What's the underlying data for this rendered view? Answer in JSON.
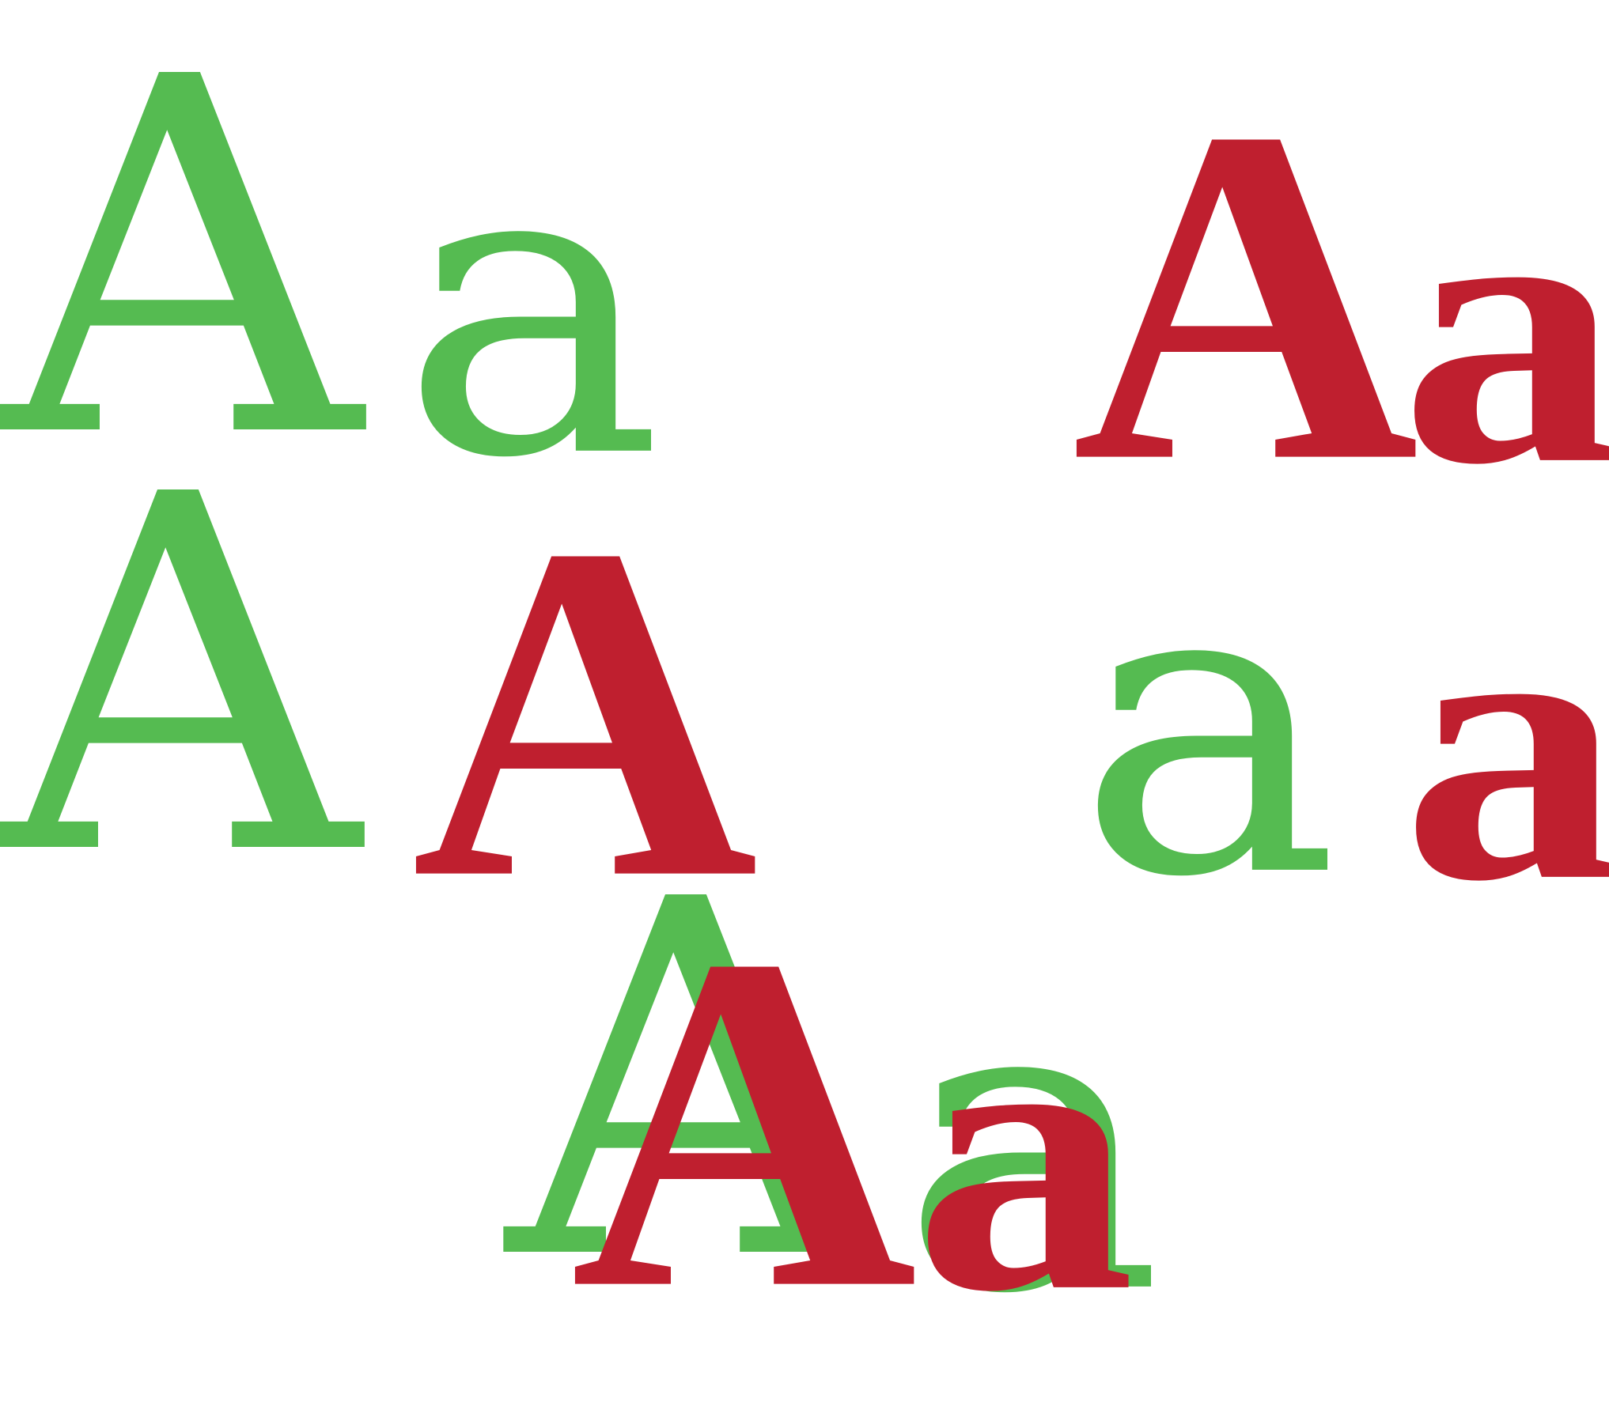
{
  "colors": {
    "green": "#55bb51",
    "red": "#bf1f2f"
  },
  "row1": {
    "green_upper": "A",
    "green_lower": "a",
    "red_upper": "A",
    "red_lower": "a"
  },
  "row2": {
    "green_upper": "A",
    "red_upper": "A",
    "green_lower": "a",
    "red_lower": "a"
  },
  "overlay": {
    "green_upper": "A",
    "red_upper": "A",
    "green_lower": "a",
    "red_lower": "a"
  }
}
